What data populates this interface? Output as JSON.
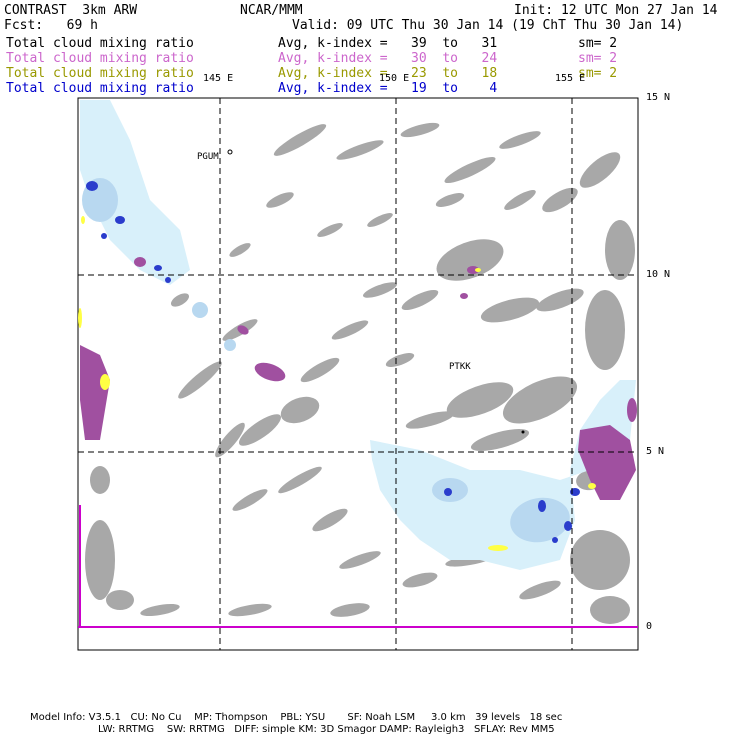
{
  "header": {
    "model": "CONTRAST  3km ARW",
    "org": "NCAR/MMM",
    "init": "Init: 12 UTC Mon 27 Jan 14",
    "fcst": "Fcst:   69 h",
    "valid": "Valid: 09 UTC Thu 30 Jan 14 (19 ChT Thu 30 Jan 14)"
  },
  "fields": [
    {
      "name": "Total cloud mixing ratio",
      "stat": "Avg, k-index =   39  to   31",
      "sm": "sm= 2",
      "color": "#000000"
    },
    {
      "name": "Total cloud mixing ratio",
      "stat": "Avg, k-index =   30  to   24",
      "sm": "sm= 2",
      "color": "#cc66cc"
    },
    {
      "name": "Total cloud mixing ratio",
      "stat": "Avg, k-index =   23  to   18",
      "sm": "sm= 2",
      "color": "#999900"
    },
    {
      "name": "Total cloud mixing ratio",
      "stat": "Avg, k-index =   19  to    4",
      "sm": "sm= 2",
      "color": "#0000cc"
    }
  ],
  "map": {
    "lon_labels": [
      "145 E",
      "150 E",
      "155 E"
    ],
    "lat_labels": [
      "15 N",
      "10 N",
      "5 N",
      "0"
    ],
    "stations": [
      "PGUM",
      "PTKK"
    ],
    "colors": {
      "gray": "#a8a8a8",
      "purple": "#a050a0",
      "yellow": "#ffff44",
      "lightblue": "#d8f0fa",
      "midblue": "#b8d8f0",
      "darkblue": "#2a3ccc",
      "equator": "#cc00cc"
    }
  },
  "footer": {
    "line1": "Model Info: V3.5.1   CU: No Cu    MP: Thompson    PBL: YSU       SF: Noah LSM     3.0 km   39 levels   18 sec",
    "line2": "LW: RRTMG    SW: RRTMG   DIFF: simple KM: 3D Smagor DAMP: Rayleigh3   SFLAY: Rev MM5"
  }
}
